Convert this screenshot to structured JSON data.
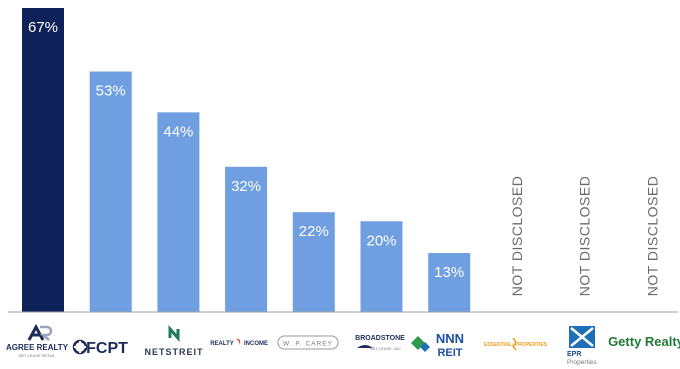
{
  "chart_data": {
    "type": "bar",
    "categories": [
      "Agree Realty",
      "FCPT",
      "NetSTREIT",
      "Realty Income",
      "W. P. Carey",
      "Broadstone Net Lease",
      "NNN REIT",
      "Essential Properties",
      "EPR Properties",
      "Getty Realty"
    ],
    "values": [
      67,
      53,
      44,
      32,
      22,
      20,
      13,
      null,
      null,
      null
    ],
    "data_labels": [
      "67%",
      "53%",
      "44%",
      "32%",
      "22%",
      "20%",
      "13%",
      "NOT DISCLOSED",
      "NOT DISCLOSED",
      "NOT DISCLOSED"
    ],
    "highlight_index": 0,
    "ylim": [
      0,
      67
    ],
    "grid": false,
    "legend": "none",
    "xlabel": "",
    "ylabel": ""
  },
  "colors": {
    "highlight": "#0e2159",
    "bar": "#6f9fe0",
    "label_on_bar": "#ffffff",
    "not_disclosed_text": "#6b6b6b",
    "axis": "#9aa0a6"
  },
  "logos": [
    {
      "name": "agree-realty",
      "primary": "AGREE REALTY",
      "secondary": "NET LEASE RETAIL"
    },
    {
      "name": "fcpt",
      "primary": "FCPT"
    },
    {
      "name": "netstreit",
      "primary": "NETSTREIT"
    },
    {
      "name": "realty-income",
      "primary": "REALTY",
      "secondary": "INCOME"
    },
    {
      "name": "wp-carey",
      "primary": "W. P. CAREY"
    },
    {
      "name": "broadstone",
      "primary": "BROADSTONE",
      "secondary": "NET LEASE, INC."
    },
    {
      "name": "nnn-reit",
      "primary": "NNN",
      "secondary": "REIT"
    },
    {
      "name": "essential-properties",
      "primary": "ESSENTIAL",
      "secondary": "PROPERTIES"
    },
    {
      "name": "epr-properties",
      "primary": "EPR",
      "secondary": "Properties"
    },
    {
      "name": "getty-realty",
      "primary": "Getty Realty"
    }
  ]
}
